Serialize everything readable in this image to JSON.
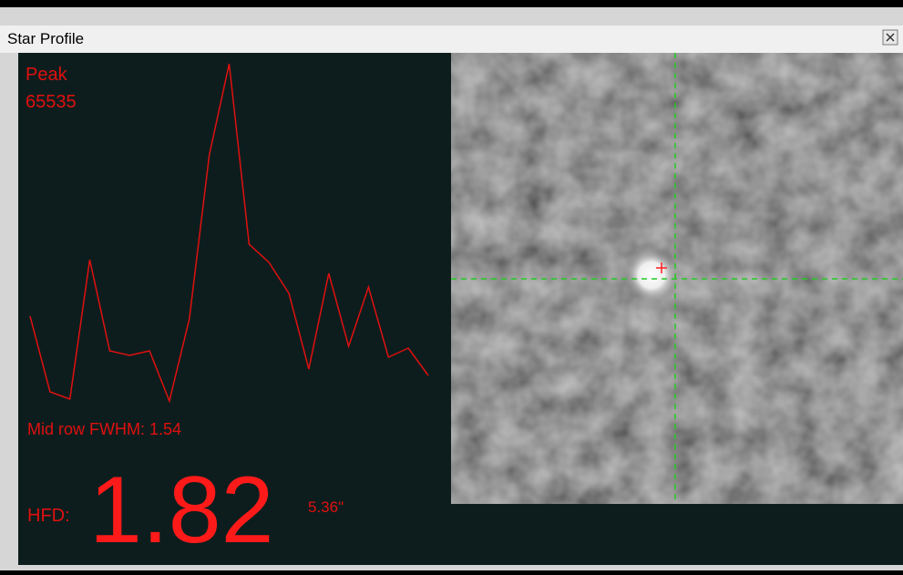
{
  "title": "Star Profile",
  "peak_label": "Peak",
  "peak": 65535,
  "profile": [
    16470,
    1771,
    354,
    27454,
    9742,
    8856,
    9742,
    0,
    15941,
    47822,
    65535,
    30465,
    26923,
    20900,
    6199,
    24797,
    10628,
    22140,
    8502,
    10273,
    4959
  ],
  "fwhm_label": "Mid row FWHM:",
  "fwhm": 1.54,
  "hfd_label": "HFD:",
  "hfd": 1.82,
  "hfd_arcsec": "5.36\""
}
